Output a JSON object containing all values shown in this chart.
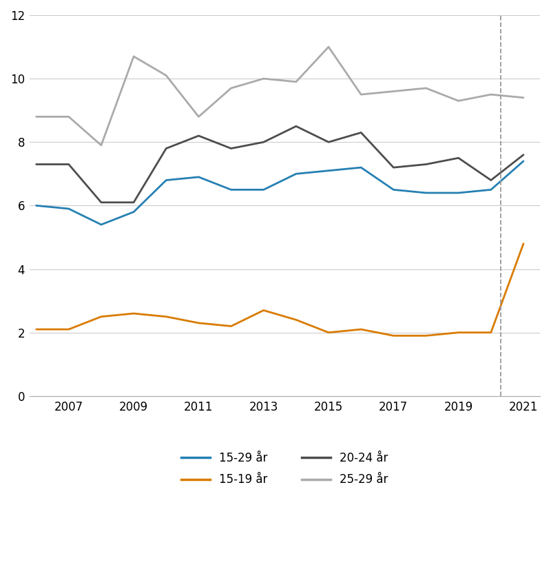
{
  "series": {
    "15-29 år": {
      "years": [
        2006,
        2007,
        2008,
        2009,
        2010,
        2011,
        2012,
        2013,
        2014,
        2015,
        2016,
        2017,
        2018,
        2019,
        2020,
        2021
      ],
      "values": [
        6.0,
        5.9,
        5.4,
        5.8,
        6.8,
        6.9,
        6.5,
        6.5,
        7.0,
        7.1,
        7.2,
        6.5,
        6.4,
        6.4,
        6.5,
        7.4
      ],
      "color": "#2580B3",
      "linewidth": 2.0,
      "zorder": 4
    },
    "15-19 år": {
      "years": [
        2006,
        2007,
        2008,
        2009,
        2010,
        2011,
        2012,
        2013,
        2014,
        2015,
        2016,
        2017,
        2018,
        2019,
        2020,
        2021
      ],
      "values": [
        2.1,
        2.1,
        2.5,
        2.6,
        2.5,
        2.3,
        2.2,
        2.7,
        2.4,
        2.0,
        2.1,
        1.9,
        1.9,
        2.0,
        2.0,
        4.8
      ],
      "color": "#D97B00",
      "linewidth": 2.0,
      "zorder": 3
    },
    "20-24 år": {
      "years": [
        2006,
        2007,
        2008,
        2009,
        2010,
        2011,
        2012,
        2013,
        2014,
        2015,
        2016,
        2017,
        2018,
        2019,
        2020,
        2021
      ],
      "values": [
        7.3,
        7.3,
        6.1,
        6.1,
        7.8,
        8.2,
        7.8,
        8.0,
        8.5,
        8.0,
        8.3,
        7.2,
        7.3,
        7.5,
        6.8,
        7.6
      ],
      "color": "#4D4D4D",
      "linewidth": 2.0,
      "zorder": 3
    },
    "25-29 år": {
      "years": [
        2006,
        2007,
        2008,
        2009,
        2010,
        2011,
        2012,
        2013,
        2014,
        2015,
        2016,
        2017,
        2018,
        2019,
        2020,
        2021
      ],
      "values": [
        8.8,
        8.8,
        7.9,
        10.7,
        10.1,
        8.8,
        9.7,
        10.0,
        9.9,
        11.0,
        9.5,
        9.6,
        9.7,
        9.3,
        9.5,
        9.4
      ],
      "color": "#AAAAAA",
      "linewidth": 2.0,
      "zorder": 2
    }
  },
  "vline_x": 2020.3,
  "ylim": [
    0,
    12
  ],
  "yticks": [
    0,
    2,
    4,
    6,
    8,
    10,
    12
  ],
  "xlim_left": 2005.8,
  "xlim_right": 2021.5,
  "xticks": [
    2007,
    2009,
    2011,
    2013,
    2015,
    2017,
    2019,
    2021
  ],
  "background_color": "#FFFFFF",
  "grid_color": "#CCCCCC",
  "legend_order": [
    "15-29 år",
    "15-19 år",
    "20-24 år",
    "25-29 år"
  ]
}
